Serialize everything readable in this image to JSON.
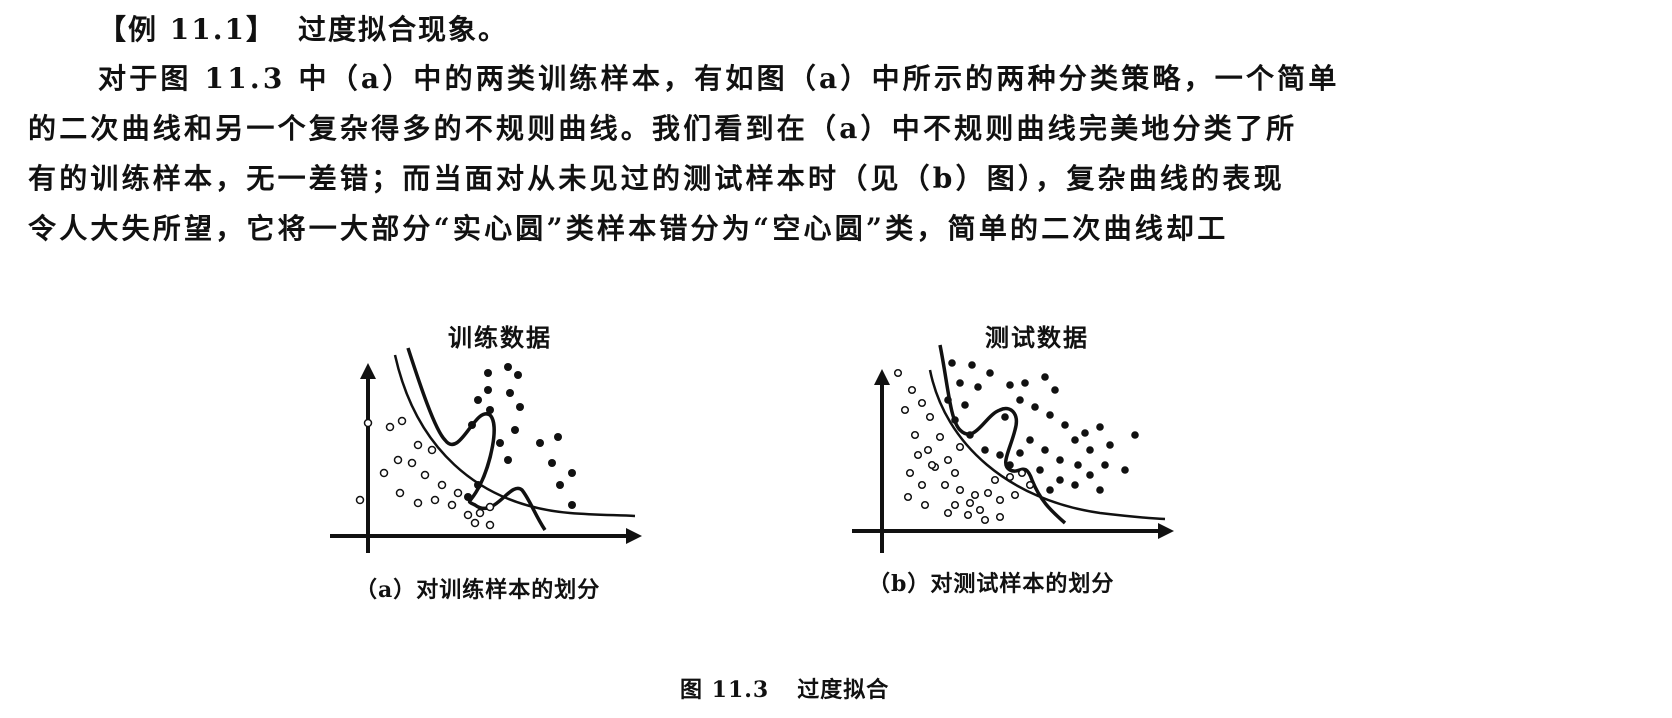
{
  "example": {
    "label": "【例 11.1】",
    "title": "过度拟合现象。"
  },
  "paragraph": {
    "lines": [
      "对于图 11.3 中（a）中的两类训练样本，有如图（a）中所示的两种分类策略，一个简单",
      "的二次曲线和另一个复杂得多的不规则曲线。我们看到在（a）中不规则曲线完美地分类了所",
      "有的训练样本，无一差错；而当面对从未见过的测试样本时（见（b）图），复杂曲线的表现",
      "令人大失所望，它将一大部分“实心圆”类样本错分为“空心圆”类，简单的二次曲线却工"
    ]
  },
  "figure": {
    "number": "图 11.3",
    "title": "过度拟合",
    "plot_a": {
      "title": "训练数据",
      "caption": "（a）对训练样本的划分"
    },
    "plot_b": {
      "title": "测试数据",
      "caption": "（b）对测试样本的划分"
    }
  }
}
